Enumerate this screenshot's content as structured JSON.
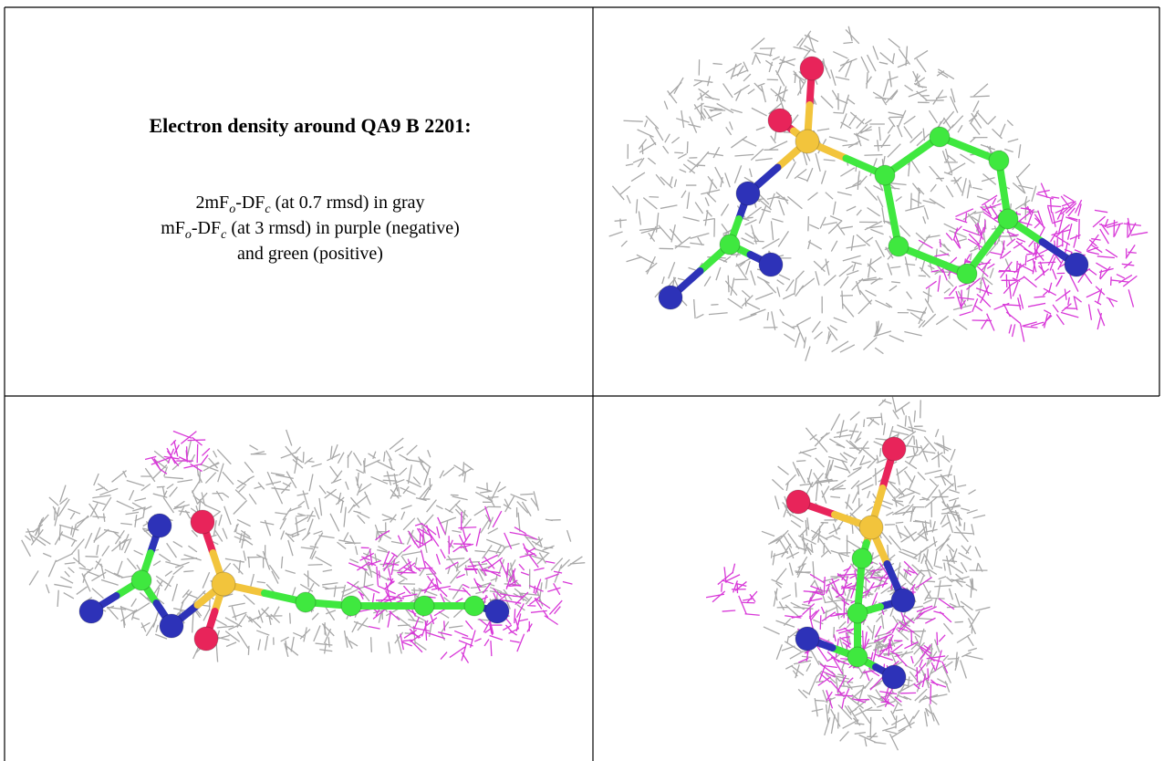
{
  "caption": {
    "title": "Electron density around QA9 B 2201:",
    "lines": [
      [
        "2mF",
        "o",
        "-DF",
        "c",
        " (at 0.7 rmsd) in gray"
      ],
      [
        "mF",
        "o",
        "-DF",
        "c",
        " (at 3 rmsd) in purple (negative)"
      ],
      [
        "and green (positive)"
      ]
    ]
  }
}
